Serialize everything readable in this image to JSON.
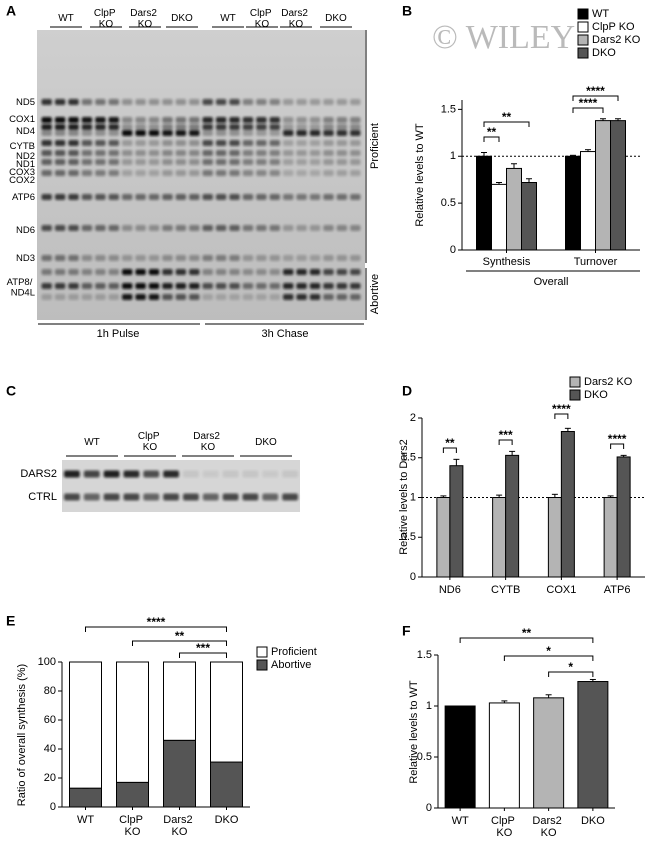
{
  "panel_labels": [
    "A",
    "B",
    "C",
    "D",
    "E",
    "F"
  ],
  "watermark": "© WILEY",
  "gel_a": {
    "lanes": [
      "WT",
      "ClpP KO",
      "Dars2 KO",
      "DKO",
      "WT",
      "ClpP KO",
      "Dars2 KO",
      "DKO"
    ],
    "bands": [
      "ND5",
      "COX1",
      "ND4",
      "CYTB",
      "ND2",
      "ND1",
      "COX3",
      "COX2",
      "ATP6",
      "ND6",
      "ND3",
      "ATP8/ ND4L"
    ],
    "regions": [
      "Proficient",
      "Abortive"
    ],
    "conditions": [
      "1h Pulse",
      "3h Chase"
    ]
  },
  "blot_c": {
    "lanes": [
      "WT",
      "ClpP KO",
      "Dars2 KO",
      "DKO"
    ],
    "rows": [
      "DARS2",
      "CTRL"
    ]
  },
  "chart_data": [
    {
      "type": "bar",
      "categories": [
        "Synthesis",
        "Turnover"
      ],
      "group_label": "Overall",
      "y_label": "Relative levels to WT",
      "series": [
        {
          "name": "WT",
          "color": "#000000",
          "values": [
            1.0,
            1.0
          ],
          "errors": [
            0.04,
            0.01
          ]
        },
        {
          "name": "ClpP KO",
          "color": "#ffffff",
          "values": [
            0.7,
            1.05
          ],
          "errors": [
            0.02,
            0.02
          ]
        },
        {
          "name": "Dars2 KO",
          "color": "#b4b4b4",
          "values": [
            0.87,
            1.38
          ],
          "errors": [
            0.05,
            0.02
          ]
        },
        {
          "name": "DKO",
          "color": "#555555",
          "values": [
            0.72,
            1.38
          ],
          "errors": [
            0.04,
            0.02
          ]
        }
      ],
      "ylim": [
        0,
        1.6
      ],
      "yticks": [
        0,
        0.5,
        1,
        1.5
      ],
      "reference_line": 1,
      "legend": "top-right",
      "significance": [
        "**",
        "**",
        "****",
        "****"
      ]
    },
    {
      "type": "bar",
      "categories": [
        "ND6",
        "CYTB",
        "COX1",
        "ATP6"
      ],
      "y_label": "Relative levels to Dars2",
      "series": [
        {
          "name": "Dars2 KO",
          "color": "#b4b4b4",
          "values": [
            1.0,
            1.0,
            1.0,
            1.0
          ],
          "errors": [
            0.02,
            0.03,
            0.04,
            0.02
          ]
        },
        {
          "name": "DKO",
          "color": "#555555",
          "values": [
            1.4,
            1.53,
            1.83,
            1.51
          ],
          "errors": [
            0.08,
            0.05,
            0.04,
            0.02
          ]
        }
      ],
      "ylim": [
        0,
        2
      ],
      "yticks": [
        0,
        0.5,
        1,
        1.5,
        2
      ],
      "reference_line": 1,
      "legend": "top-right",
      "significance": [
        "**",
        "***",
        "****",
        "****"
      ]
    },
    {
      "type": "stacked_bar",
      "categories": [
        "WT",
        "ClpP KO",
        "Dars2 KO",
        "DKO"
      ],
      "y_label": "Ratio of overall synthesis (%)",
      "series": [
        {
          "name": "Proficient",
          "color": "#ffffff",
          "values": [
            87,
            83,
            54,
            69
          ]
        },
        {
          "name": "Abortive",
          "color": "#555555",
          "values": [
            13,
            17,
            46,
            31
          ],
          "errors": [
            0,
            2,
            1.5,
            1
          ]
        }
      ],
      "ylim": [
        0,
        100
      ],
      "yticks": [
        0,
        20,
        40,
        60,
        80,
        100
      ],
      "legend": "top-right",
      "significance": [
        "****",
        "**",
        "***"
      ]
    },
    {
      "type": "bar",
      "categories": [
        "WT",
        "ClpP KO",
        "Dars2 KO",
        "DKO"
      ],
      "y_label": "Relative levels to WT",
      "values": [
        1.0,
        1.03,
        1.08,
        1.24
      ],
      "errors": [
        0,
        0.02,
        0.03,
        0.02
      ],
      "colors": [
        "#000000",
        "#ffffff",
        "#b4b4b4",
        "#555555"
      ],
      "ylim": [
        0,
        1.5
      ],
      "yticks": [
        0,
        0.5,
        1,
        1.5
      ],
      "significance": [
        "**",
        "*",
        "*"
      ]
    }
  ]
}
